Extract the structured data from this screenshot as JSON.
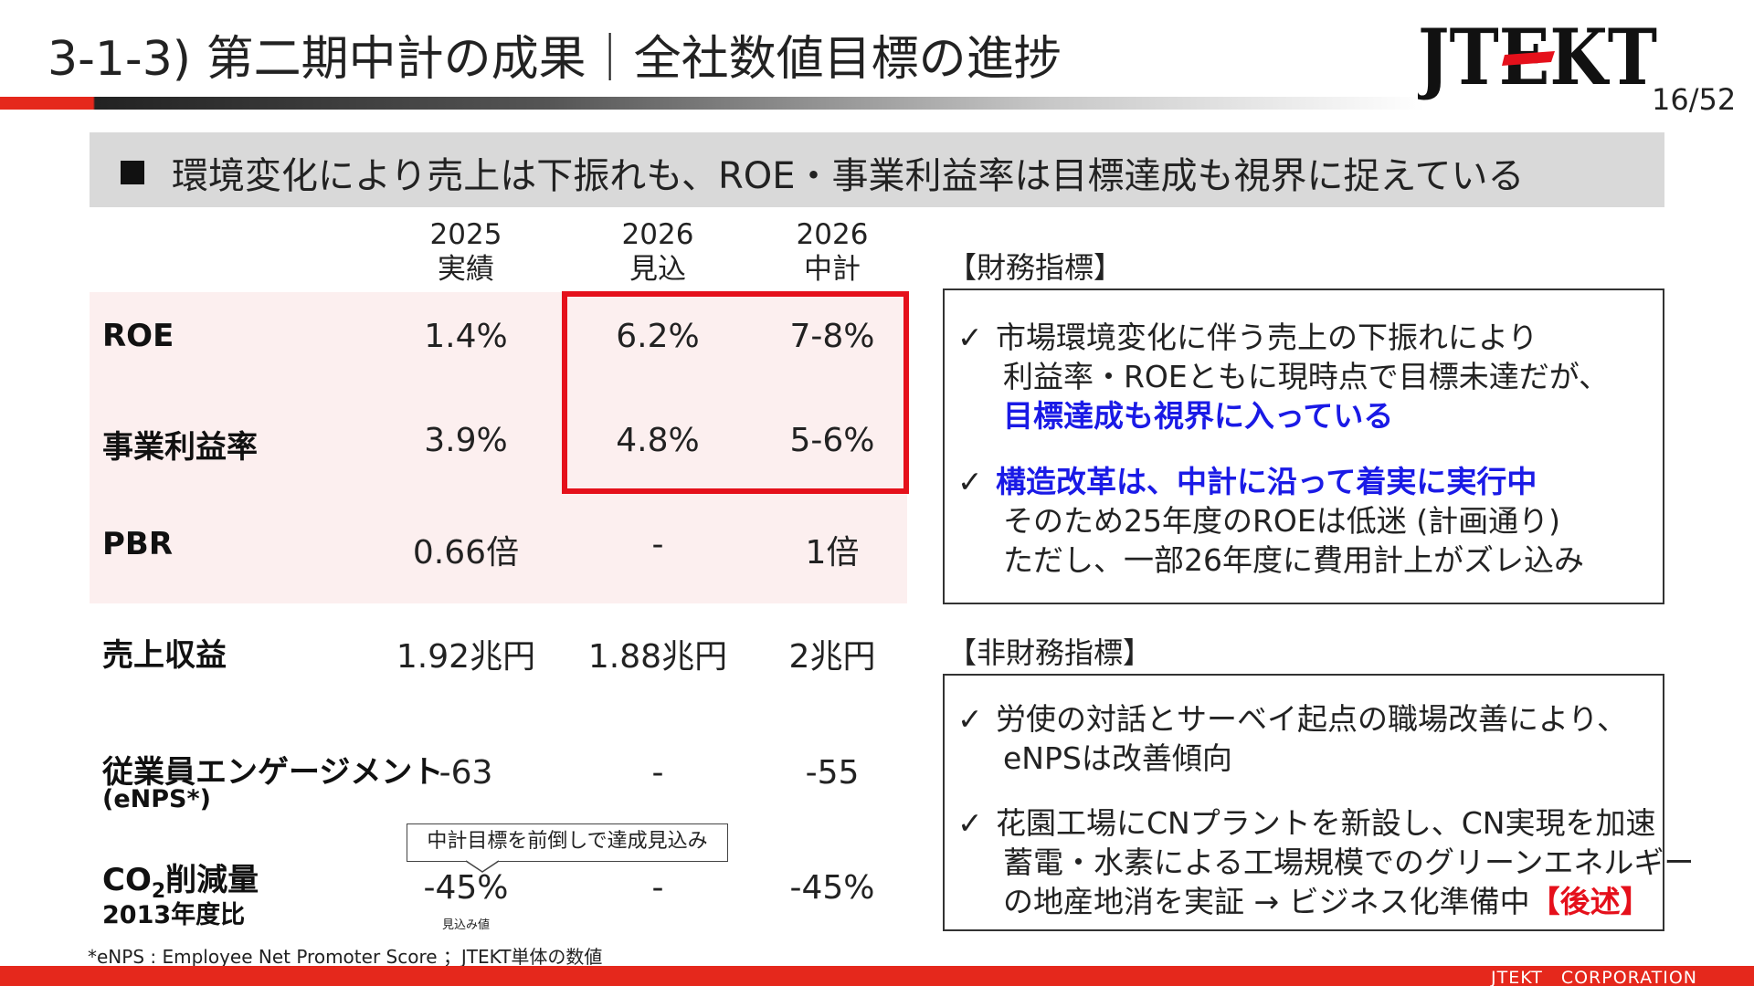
{
  "header": {
    "title": "3-1-3) 第二期中計の成果｜全社数値目標の進捗",
    "logo_text": "JTEKT",
    "page_number": "16/52"
  },
  "headline": "環境変化により売上は下振れも、ROE・事業利益率は目標達成も視界に捉えている",
  "table": {
    "columns": [
      {
        "line1": "2025",
        "line2": "実績"
      },
      {
        "line1": "2026",
        "line2": "見込"
      },
      {
        "line1": "2026",
        "line2": "中計"
      }
    ],
    "rows": [
      {
        "label": "ROE",
        "values": [
          "1.4%",
          "6.2%",
          "7-8%"
        ]
      },
      {
        "label": "事業利益率",
        "values": [
          "3.9%",
          "4.8%",
          "5-6%"
        ]
      },
      {
        "label": "PBR",
        "values": [
          "0.66倍",
          "-",
          "1倍"
        ]
      },
      {
        "label": "売上収益",
        "values": [
          "1.92兆円",
          "1.88兆円",
          "2兆円"
        ]
      },
      {
        "label": "従業員エンゲージメント",
        "sublabel": "(eNPS*)",
        "values": [
          "-63",
          "-",
          "-55"
        ]
      },
      {
        "label_main": "CO",
        "label_subscript": "2",
        "label_rest": "削減量",
        "sublabel": "2013年度比",
        "values": [
          "-45%",
          "-",
          "-45%"
        ]
      }
    ],
    "callout": "中計目標を前倒しで達成見込み",
    "estimate_note": "見込み値"
  },
  "financial": {
    "label": "【財務指標】",
    "bullets": [
      {
        "line1": "市場環境変化に伴う売上の下振れにより",
        "line2": "利益率・ROEともに現時点で目標未達だが、",
        "line3": "目標達成も視界に入っている"
      },
      {
        "line1": "構造改革は、中計に沿って着実に実行中",
        "line2": "そのため25年度のROEは低迷 (計画通り)",
        "line3": "ただし、一部26年度に費用計上がズレ込み"
      }
    ]
  },
  "non_financial": {
    "label": "【非財務指標】",
    "bullets": [
      {
        "line1": "労使の対話とサーベイ起点の職場改善により、",
        "line2": "eNPSは改善傾向"
      },
      {
        "line1": "花園工場にCNプラントを新設し、CN実現を加速",
        "line2": "蓄電・水素による工場規模でのグリーンエネルギー",
        "line3": "の地産地消を実証 → ビジネス化準備中",
        "line3_highlight": "【後述】"
      }
    ]
  },
  "check_mark": "✓",
  "footnote": "*eNPS : Employee Net Promoter Score ；JTEKT単体の数値",
  "footer": "JTEKT　CORPORATION",
  "colors": {
    "accent_red": "#e5281c",
    "emphasis_blue": "#1a1ae6",
    "highlight_pink": "#fcefef"
  }
}
